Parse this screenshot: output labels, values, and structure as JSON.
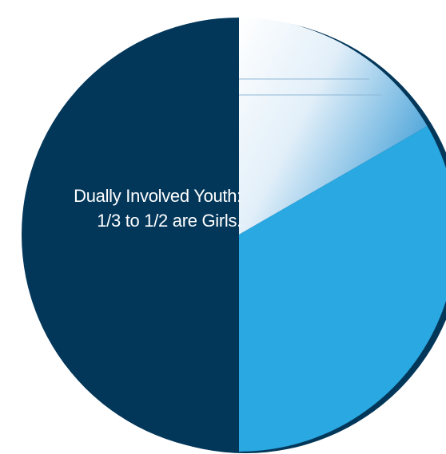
{
  "chart_data": {
    "type": "pie",
    "title": "",
    "annotation_lines": [
      "Dually Involved Youth:",
      "1/3 to 1/2 are Girls."
    ],
    "slices": [
      {
        "label": "",
        "fraction": 0.5,
        "color": "#03375a"
      },
      {
        "label": "",
        "fraction": 0.3333,
        "color": "#2aa8e1"
      },
      {
        "label": "",
        "fraction": 0.1667,
        "color": "#dfeef9"
      }
    ]
  }
}
